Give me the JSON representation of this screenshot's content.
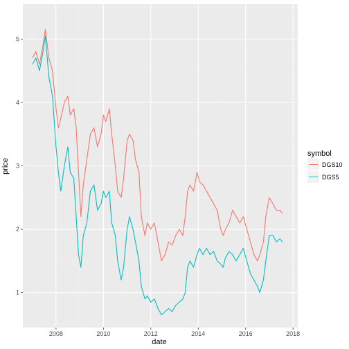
{
  "chart_data": {
    "type": "line",
    "title": "",
    "xlabel": "date",
    "ylabel": "price",
    "x_tick_labels": [
      "2008",
      "2010",
      "2012",
      "2014",
      "2016",
      "2018"
    ],
    "y_tick_labels": [
      "1",
      "2",
      "3",
      "4",
      "5"
    ],
    "x_ticks": [
      2008,
      2010,
      2012,
      2014,
      2016,
      2018
    ],
    "y_ticks": [
      1,
      2,
      3,
      4,
      5
    ],
    "xlim": [
      2006.6,
      2018.2
    ],
    "ylim": [
      0.45,
      5.55
    ],
    "grid": true,
    "legend": {
      "title": "symbol",
      "position": "right"
    },
    "series": [
      {
        "name": "DGS10",
        "color": "#F8766D",
        "x": [
          2007.0,
          2007.15,
          2007.3,
          2007.45,
          2007.55,
          2007.7,
          2007.85,
          2008.0,
          2008.1,
          2008.2,
          2008.35,
          2008.5,
          2008.6,
          2008.75,
          2008.85,
          2008.95,
          2009.05,
          2009.15,
          2009.3,
          2009.45,
          2009.6,
          2009.75,
          2009.9,
          2010.0,
          2010.1,
          2010.25,
          2010.35,
          2010.5,
          2010.6,
          2010.75,
          2010.85,
          2011.0,
          2011.1,
          2011.25,
          2011.35,
          2011.5,
          2011.6,
          2011.75,
          2011.85,
          2012.0,
          2012.15,
          2012.3,
          2012.45,
          2012.6,
          2012.75,
          2012.9,
          2013.05,
          2013.2,
          2013.35,
          2013.45,
          2013.55,
          2013.65,
          2013.8,
          2013.95,
          2014.05,
          2014.2,
          2014.35,
          2014.5,
          2014.65,
          2014.8,
          2014.95,
          2015.05,
          2015.15,
          2015.3,
          2015.45,
          2015.6,
          2015.75,
          2015.9,
          2016.05,
          2016.2,
          2016.35,
          2016.5,
          2016.6,
          2016.75,
          2016.85,
          2017.0,
          2017.15,
          2017.3,
          2017.45,
          2017.55
        ],
        "values": [
          4.7,
          4.8,
          4.6,
          4.9,
          5.15,
          4.7,
          4.5,
          3.9,
          3.6,
          3.75,
          4.0,
          4.1,
          3.8,
          3.9,
          3.6,
          2.9,
          2.2,
          2.7,
          3.1,
          3.5,
          3.6,
          3.3,
          3.5,
          3.8,
          3.7,
          3.9,
          3.5,
          3.0,
          2.6,
          2.5,
          2.8,
          3.4,
          3.5,
          3.4,
          3.1,
          2.9,
          2.2,
          1.9,
          2.1,
          2.0,
          2.1,
          1.8,
          1.5,
          1.6,
          1.8,
          1.75,
          1.9,
          2.0,
          1.9,
          2.2,
          2.6,
          2.7,
          2.6,
          2.9,
          2.75,
          2.7,
          2.6,
          2.5,
          2.4,
          2.3,
          2.0,
          1.9,
          2.0,
          2.1,
          2.3,
          2.2,
          2.1,
          2.2,
          2.0,
          1.8,
          1.6,
          1.5,
          1.6,
          1.8,
          2.2,
          2.5,
          2.4,
          2.3,
          2.3,
          2.25
        ]
      },
      {
        "name": "DGS5",
        "color": "#00BFC4",
        "x": [
          2007.0,
          2007.15,
          2007.3,
          2007.45,
          2007.55,
          2007.7,
          2007.85,
          2008.0,
          2008.1,
          2008.2,
          2008.35,
          2008.5,
          2008.6,
          2008.75,
          2008.85,
          2008.95,
          2009.05,
          2009.15,
          2009.3,
          2009.45,
          2009.6,
          2009.75,
          2009.9,
          2010.0,
          2010.1,
          2010.25,
          2010.35,
          2010.5,
          2010.6,
          2010.75,
          2010.85,
          2011.0,
          2011.1,
          2011.25,
          2011.35,
          2011.5,
          2011.6,
          2011.75,
          2011.85,
          2012.0,
          2012.15,
          2012.3,
          2012.45,
          2012.6,
          2012.75,
          2012.9,
          2013.05,
          2013.2,
          2013.35,
          2013.45,
          2013.55,
          2013.65,
          2013.8,
          2013.95,
          2014.05,
          2014.2,
          2014.35,
          2014.5,
          2014.65,
          2014.8,
          2014.95,
          2015.05,
          2015.15,
          2015.3,
          2015.45,
          2015.6,
          2015.75,
          2015.9,
          2016.05,
          2016.2,
          2016.35,
          2016.5,
          2016.6,
          2016.75,
          2016.85,
          2017.0,
          2017.15,
          2017.3,
          2017.45,
          2017.55
        ],
        "values": [
          4.6,
          4.7,
          4.5,
          4.8,
          5.05,
          4.4,
          4.1,
          3.3,
          2.9,
          2.6,
          3.0,
          3.3,
          2.9,
          2.8,
          2.2,
          1.6,
          1.4,
          1.9,
          2.1,
          2.6,
          2.7,
          2.3,
          2.4,
          2.6,
          2.5,
          2.6,
          2.1,
          1.9,
          1.5,
          1.2,
          1.4,
          2.0,
          2.2,
          2.0,
          1.8,
          1.5,
          1.1,
          0.9,
          0.95,
          0.85,
          0.9,
          0.75,
          0.65,
          0.7,
          0.75,
          0.7,
          0.8,
          0.85,
          0.9,
          1.0,
          1.4,
          1.5,
          1.4,
          1.6,
          1.7,
          1.6,
          1.7,
          1.6,
          1.65,
          1.5,
          1.45,
          1.4,
          1.55,
          1.65,
          1.6,
          1.5,
          1.6,
          1.7,
          1.5,
          1.3,
          1.2,
          1.1,
          1.0,
          1.2,
          1.5,
          1.9,
          1.9,
          1.8,
          1.85,
          1.8
        ]
      }
    ]
  }
}
